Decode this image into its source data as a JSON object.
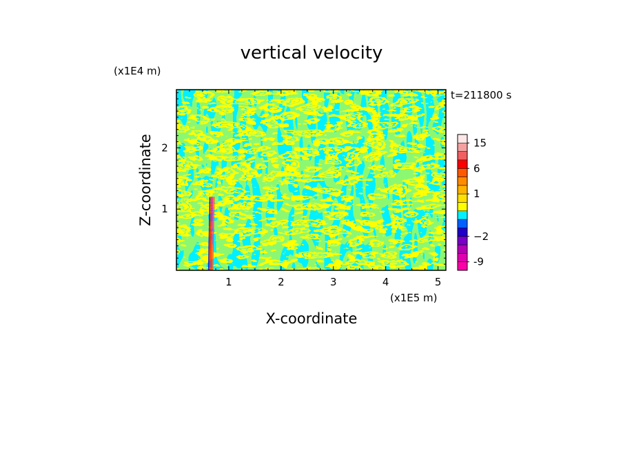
{
  "chart_data": {
    "type": "heatmap",
    "title": "vertical velocity",
    "xlabel": "X-coordinate",
    "ylabel": "Z-coordinate",
    "x_unit": "(x1E5 m)",
    "y_unit": "(x1E4 m)",
    "time_label": "t=211800 s",
    "xlim": [
      0,
      5.15
    ],
    "ylim": [
      0,
      2.95
    ],
    "x_ticks": [
      1,
      2,
      3,
      4,
      5
    ],
    "y_ticks": [
      1,
      2
    ],
    "x_tick_labels": [
      "1",
      "2",
      "3",
      "4",
      "5"
    ],
    "y_tick_labels": [
      "1",
      "2"
    ],
    "field_colors": {
      "positive": "#ffff00",
      "negative": "#00f0ff"
    },
    "anomaly_band_x": 0.68,
    "colorbar": {
      "levels": [
        -12,
        -9,
        -6,
        -4,
        -2,
        -1,
        -0.5,
        0,
        0.5,
        1,
        2,
        4,
        6,
        9,
        12,
        15,
        20
      ],
      "colors": [
        "#ff00a8",
        "#e000b0",
        "#b400b4",
        "#7800c8",
        "#1e00c8",
        "#0060ff",
        "#00f0ff",
        "#ffff00",
        "#ffe000",
        "#ffb400",
        "#ff8c00",
        "#ff5a00",
        "#ff0000",
        "#f06060",
        "#f5a0a0",
        "#ffe6e6"
      ],
      "tick_values": [
        -9,
        -2,
        1,
        6,
        15
      ],
      "tick_labels": [
        "-9",
        "−2",
        "1",
        "6",
        "15"
      ]
    }
  }
}
